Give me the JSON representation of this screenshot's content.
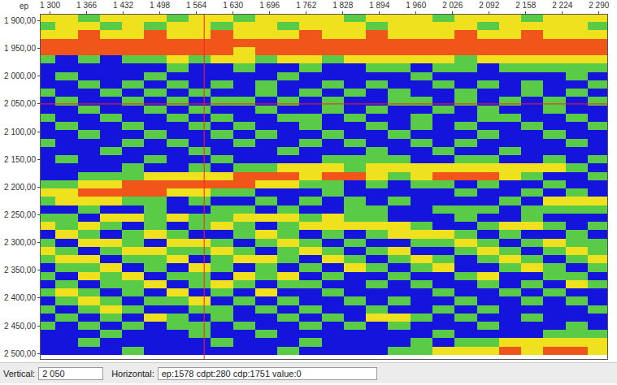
{
  "chart_data": {
    "type": "heatmap",
    "x_label": "ep",
    "xlim": [
      1283,
      2305
    ],
    "xticks": [
      {
        "value": 1300,
        "label": "1 300"
      },
      {
        "value": 1366,
        "label": "1 366"
      },
      {
        "value": 1432,
        "label": "1 432"
      },
      {
        "value": 1498,
        "label": "1 498"
      },
      {
        "value": 1564,
        "label": "1 564"
      },
      {
        "value": 1630,
        "label": "1 630"
      },
      {
        "value": 1696,
        "label": "1 696"
      },
      {
        "value": 1762,
        "label": "1 762"
      },
      {
        "value": 1828,
        "label": "1 828"
      },
      {
        "value": 1894,
        "label": "1 894"
      },
      {
        "value": 1960,
        "label": "1 960"
      },
      {
        "value": 2026,
        "label": "2 026"
      },
      {
        "value": 2092,
        "label": "2 092"
      },
      {
        "value": 2158,
        "label": "2 158"
      },
      {
        "value": 2224,
        "label": "2 224"
      },
      {
        "value": 2290,
        "label": "2 290"
      }
    ],
    "ylim": [
      2510,
      1889
    ],
    "yticks": [
      {
        "value": 1900,
        "label": "1 900,00"
      },
      {
        "value": 1950,
        "label": "1 950,00"
      },
      {
        "value": 2000,
        "label": "2 000,00"
      },
      {
        "value": 2050,
        "label": "2 050,00"
      },
      {
        "value": 2100,
        "label": "2 100,00"
      },
      {
        "value": 2150,
        "label": "2 150,00"
      },
      {
        "value": 2200,
        "label": "2 200,00"
      },
      {
        "value": 2250,
        "label": "2 250,00"
      },
      {
        "value": 2300,
        "label": "2 300,00"
      },
      {
        "value": 2350,
        "label": "2 350,00"
      },
      {
        "value": 2400,
        "label": "2 400,00"
      },
      {
        "value": 2450,
        "label": "2 450,00"
      },
      {
        "value": 2500,
        "label": "2 500,00"
      }
    ],
    "zlim": [
      0,
      3
    ],
    "crosshair": {
      "x": 1578,
      "y": 2050
    },
    "x": [
      1290,
      1330,
      1370,
      1410,
      1450,
      1490,
      1530,
      1570,
      1610,
      1650,
      1690,
      1730,
      1770,
      1810,
      1850,
      1890,
      1930,
      1970,
      2010,
      2050,
      2090,
      2130,
      2170,
      2210,
      2250,
      2290
    ],
    "y": [
      1895,
      1910,
      1925,
      1940,
      1955,
      1970,
      1985,
      2000,
      2015,
      2030,
      2045,
      2060,
      2075,
      2090,
      2105,
      2120,
      2135,
      2150,
      2165,
      2180,
      2195,
      2210,
      2225,
      2240,
      2255,
      2270,
      2285,
      2300,
      2315,
      2330,
      2345,
      2360,
      2375,
      2390,
      2405,
      2420,
      2435,
      2450,
      2465,
      2480,
      2495
    ],
    "z": [
      [
        2,
        2,
        1,
        2,
        2,
        2,
        1,
        2,
        2,
        1,
        2,
        2,
        2,
        2,
        1,
        2,
        2,
        2,
        1,
        2,
        2,
        2,
        1,
        2,
        2,
        2
      ],
      [
        1,
        2,
        2,
        1,
        2,
        1,
        2,
        2,
        1,
        2,
        2,
        1,
        2,
        2,
        2,
        1,
        2,
        2,
        2,
        2,
        1,
        2,
        2,
        2,
        2,
        1
      ],
      [
        2,
        2,
        3,
        2,
        2,
        3,
        2,
        2,
        3,
        2,
        2,
        2,
        3,
        2,
        2,
        3,
        2,
        2,
        2,
        3,
        2,
        2,
        3,
        2,
        2,
        2
      ],
      [
        3,
        3,
        3,
        3,
        3,
        3,
        3,
        3,
        3,
        3,
        3,
        3,
        3,
        3,
        3,
        3,
        3,
        3,
        3,
        3,
        3,
        3,
        3,
        3,
        3,
        3
      ],
      [
        3,
        3,
        3,
        3,
        3,
        3,
        3,
        3,
        3,
        2,
        3,
        3,
        3,
        3,
        3,
        3,
        3,
        3,
        3,
        3,
        3,
        3,
        3,
        3,
        3,
        3
      ],
      [
        1,
        0,
        1,
        0,
        1,
        1,
        2,
        1,
        2,
        2,
        1,
        2,
        2,
        1,
        2,
        2,
        2,
        2,
        2,
        1,
        2,
        2,
        2,
        2,
        2,
        2
      ],
      [
        0,
        0,
        0,
        0,
        0,
        0,
        1,
        0,
        0,
        1,
        0,
        0,
        1,
        0,
        0,
        1,
        1,
        0,
        1,
        1,
        0,
        1,
        1,
        1,
        1,
        1
      ],
      [
        0,
        1,
        0,
        0,
        0,
        1,
        0,
        0,
        0,
        0,
        0,
        1,
        0,
        0,
        0,
        0,
        0,
        1,
        0,
        0,
        0,
        0,
        0,
        0,
        1,
        0
      ],
      [
        0,
        0,
        1,
        0,
        1,
        0,
        1,
        0,
        1,
        0,
        1,
        0,
        0,
        1,
        0,
        1,
        0,
        0,
        1,
        0,
        1,
        0,
        1,
        0,
        0,
        1
      ],
      [
        1,
        0,
        0,
        1,
        0,
        1,
        0,
        1,
        0,
        0,
        1,
        0,
        1,
        0,
        1,
        0,
        1,
        0,
        0,
        1,
        0,
        0,
        1,
        0,
        1,
        0
      ],
      [
        0,
        1,
        0,
        0,
        1,
        0,
        1,
        0,
        1,
        1,
        0,
        1,
        0,
        1,
        0,
        0,
        1,
        1,
        0,
        1,
        0,
        1,
        0,
        1,
        0,
        1
      ],
      [
        0,
        0,
        1,
        0,
        0,
        1,
        0,
        1,
        0,
        0,
        1,
        0,
        0,
        1,
        0,
        1,
        0,
        0,
        1,
        0,
        1,
        0,
        0,
        1,
        0,
        0
      ],
      [
        1,
        0,
        0,
        1,
        0,
        0,
        1,
        0,
        1,
        0,
        0,
        1,
        1,
        0,
        1,
        0,
        0,
        1,
        0,
        0,
        1,
        1,
        0,
        0,
        1,
        0
      ],
      [
        0,
        1,
        0,
        0,
        1,
        0,
        0,
        1,
        0,
        1,
        0,
        0,
        1,
        0,
        0,
        1,
        0,
        1,
        0,
        1,
        0,
        0,
        1,
        0,
        0,
        1
      ],
      [
        0,
        0,
        1,
        0,
        0,
        1,
        0,
        0,
        1,
        0,
        1,
        0,
        0,
        1,
        0,
        0,
        1,
        0,
        0,
        0,
        1,
        0,
        0,
        1,
        0,
        0
      ],
      [
        1,
        0,
        0,
        0,
        1,
        0,
        1,
        0,
        0,
        1,
        0,
        0,
        1,
        0,
        1,
        0,
        0,
        1,
        0,
        1,
        0,
        0,
        0,
        0,
        1,
        0
      ],
      [
        0,
        0,
        0,
        1,
        0,
        0,
        0,
        1,
        0,
        0,
        0,
        1,
        0,
        0,
        0,
        1,
        0,
        0,
        1,
        0,
        0,
        1,
        0,
        0,
        0,
        0
      ],
      [
        0,
        1,
        0,
        0,
        0,
        1,
        0,
        0,
        1,
        0,
        0,
        0,
        0,
        1,
        1,
        1,
        1,
        0,
        0,
        1,
        1,
        0,
        0,
        1,
        0,
        1
      ],
      [
        0,
        0,
        0,
        0,
        1,
        0,
        0,
        1,
        0,
        1,
        1,
        2,
        2,
        2,
        1,
        2,
        2,
        2,
        2,
        2,
        2,
        2,
        2,
        2,
        1,
        0
      ],
      [
        0,
        0,
        1,
        1,
        1,
        2,
        2,
        2,
        2,
        3,
        3,
        3,
        2,
        3,
        3,
        2,
        1,
        2,
        3,
        3,
        3,
        2,
        1,
        0,
        0,
        1
      ],
      [
        1,
        1,
        2,
        2,
        3,
        3,
        3,
        3,
        3,
        3,
        2,
        2,
        1,
        1,
        0,
        1,
        0,
        1,
        1,
        0,
        1,
        0,
        0,
        1,
        0,
        0
      ],
      [
        2,
        2,
        3,
        3,
        3,
        3,
        2,
        2,
        1,
        1,
        0,
        0,
        0,
        1,
        0,
        0,
        0,
        0,
        0,
        1,
        0,
        0,
        1,
        0,
        1,
        0
      ],
      [
        1,
        2,
        2,
        2,
        1,
        1,
        0,
        1,
        0,
        0,
        1,
        0,
        1,
        0,
        1,
        0,
        1,
        0,
        0,
        0,
        0,
        1,
        0,
        2,
        2,
        2
      ],
      [
        0,
        0,
        1,
        0,
        0,
        1,
        0,
        0,
        1,
        1,
        0,
        1,
        0,
        0,
        1,
        1,
        0,
        0,
        1,
        1,
        1,
        0,
        1,
        1,
        1,
        1
      ],
      [
        1,
        1,
        0,
        2,
        2,
        1,
        2,
        1,
        1,
        2,
        2,
        2,
        1,
        2,
        1,
        1,
        0,
        0,
        0,
        1,
        0,
        0,
        1,
        0,
        0,
        0
      ],
      [
        2,
        1,
        2,
        1,
        0,
        1,
        0,
        1,
        2,
        1,
        0,
        1,
        2,
        2,
        2,
        2,
        2,
        1,
        0,
        0,
        1,
        2,
        2,
        1,
        0,
        1
      ],
      [
        0,
        2,
        1,
        0,
        1,
        2,
        1,
        0,
        0,
        1,
        2,
        1,
        0,
        1,
        0,
        1,
        2,
        2,
        2,
        1,
        0,
        1,
        0,
        0,
        1,
        0
      ],
      [
        1,
        0,
        2,
        2,
        1,
        0,
        2,
        2,
        1,
        0,
        1,
        2,
        1,
        0,
        1,
        0,
        0,
        1,
        1,
        2,
        1,
        0,
        1,
        2,
        1,
        1
      ],
      [
        2,
        1,
        0,
        1,
        2,
        2,
        1,
        1,
        2,
        1,
        0,
        1,
        2,
        1,
        0,
        1,
        2,
        0,
        0,
        1,
        2,
        1,
        0,
        1,
        2,
        1
      ],
      [
        1,
        2,
        2,
        0,
        1,
        1,
        2,
        0,
        1,
        2,
        2,
        1,
        0,
        2,
        1,
        0,
        1,
        2,
        1,
        0,
        1,
        2,
        1,
        0,
        1,
        2
      ],
      [
        0,
        1,
        1,
        2,
        0,
        1,
        0,
        2,
        1,
        0,
        1,
        0,
        1,
        0,
        2,
        1,
        0,
        1,
        2,
        0,
        0,
        1,
        2,
        1,
        0,
        1
      ],
      [
        1,
        0,
        2,
        1,
        2,
        0,
        1,
        1,
        0,
        2,
        1,
        2,
        0,
        1,
        0,
        0,
        1,
        0,
        0,
        1,
        2,
        0,
        0,
        1,
        1,
        0
      ],
      [
        0,
        1,
        0,
        1,
        1,
        2,
        0,
        1,
        2,
        1,
        0,
        1,
        1,
        0,
        0,
        1,
        0,
        1,
        0,
        0,
        1,
        0,
        1,
        0,
        2,
        1
      ],
      [
        1,
        2,
        1,
        0,
        1,
        0,
        2,
        0,
        1,
        0,
        2,
        0,
        0,
        1,
        0,
        0,
        0,
        0,
        1,
        0,
        0,
        1,
        0,
        1,
        0,
        0
      ],
      [
        0,
        1,
        2,
        1,
        0,
        1,
        1,
        2,
        0,
        1,
        0,
        1,
        0,
        0,
        1,
        0,
        1,
        0,
        0,
        1,
        0,
        0,
        1,
        0,
        1,
        0
      ],
      [
        1,
        0,
        1,
        2,
        1,
        0,
        0,
        1,
        1,
        0,
        1,
        0,
        1,
        0,
        0,
        1,
        0,
        0,
        1,
        0,
        1,
        0,
        0,
        0,
        0,
        1
      ],
      [
        0,
        1,
        0,
        1,
        0,
        2,
        1,
        0,
        1,
        0,
        0,
        1,
        0,
        1,
        0,
        2,
        2,
        1,
        0,
        1,
        0,
        0,
        1,
        0,
        0,
        0
      ],
      [
        1,
        0,
        1,
        0,
        1,
        0,
        1,
        1,
        0,
        1,
        0,
        0,
        1,
        0,
        1,
        0,
        1,
        0,
        0,
        0,
        1,
        0,
        0,
        0,
        1,
        0
      ],
      [
        0,
        0,
        0,
        1,
        0,
        0,
        0,
        1,
        0,
        0,
        1,
        0,
        0,
        0,
        0,
        0,
        0,
        0,
        1,
        0,
        0,
        0,
        0,
        1,
        1,
        1
      ],
      [
        0,
        0,
        1,
        0,
        0,
        0,
        0,
        0,
        1,
        0,
        0,
        0,
        1,
        0,
        0,
        0,
        0,
        1,
        0,
        1,
        1,
        2,
        2,
        2,
        2,
        2
      ],
      [
        0,
        0,
        0,
        0,
        1,
        0,
        0,
        0,
        0,
        0,
        0,
        1,
        0,
        0,
        0,
        0,
        1,
        1,
        2,
        2,
        2,
        3,
        2,
        3,
        3,
        2
      ]
    ],
    "status": {
      "vertical_label": "Vertical:",
      "vertical_value": "2 050",
      "horizontal_label": "Horizontal:",
      "horizontal_value": "ep:1578 cdpt:280 cdp:1751 value:0"
    }
  }
}
